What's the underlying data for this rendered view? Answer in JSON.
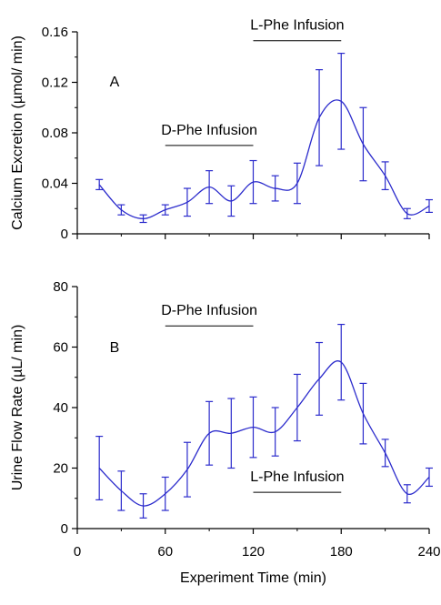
{
  "chart_data": [
    {
      "type": "line",
      "panel_label": "A",
      "ylabel": "Calcium Excretion (µmol/ min)",
      "xlabel": "",
      "xlim": [
        0,
        240
      ],
      "ylim": [
        0,
        0.16
      ],
      "xticks": [
        0,
        60,
        120,
        180,
        240
      ],
      "yticks": [
        "0",
        "0.04",
        "0.08",
        "0.12",
        "0.16"
      ],
      "series": [
        {
          "color": "#2b2bcc",
          "x": [
            15,
            30,
            45,
            60,
            75,
            90,
            105,
            120,
            135,
            150,
            165,
            180,
            195,
            210,
            225,
            240
          ],
          "y": [
            0.039,
            0.019,
            0.012,
            0.019,
            0.025,
            0.037,
            0.026,
            0.041,
            0.036,
            0.04,
            0.092,
            0.105,
            0.071,
            0.046,
            0.016,
            0.022
          ],
          "err": [
            0.004,
            0.004,
            0.003,
            0.004,
            0.011,
            0.013,
            0.012,
            0.017,
            0.01,
            0.016,
            0.038,
            0.038,
            0.029,
            0.011,
            0.004,
            0.005
          ]
        }
      ],
      "annotations": [
        {
          "text": "D-Phe Infusion",
          "x_start": 60,
          "x_end": 120,
          "y": 0.07
        },
        {
          "text": "L-Phe Infusion",
          "x_start": 120,
          "x_end": 180,
          "y": 0.153
        }
      ]
    },
    {
      "type": "line",
      "panel_label": "B",
      "ylabel": "Urine Flow Rate (µL/ min)",
      "xlabel": "Experiment Time (min)",
      "xlim": [
        0,
        240
      ],
      "ylim": [
        0,
        80
      ],
      "xticks": [
        0,
        60,
        120,
        180,
        240
      ],
      "yticks": [
        "0",
        "20",
        "40",
        "60",
        "80"
      ],
      "series": [
        {
          "color": "#2b2bcc",
          "x": [
            15,
            30,
            45,
            60,
            75,
            90,
            105,
            120,
            135,
            150,
            165,
            180,
            195,
            210,
            225,
            240
          ],
          "y": [
            20,
            12.5,
            7.5,
            11.5,
            19.5,
            31.5,
            31.5,
            33.5,
            32,
            40,
            49.5,
            55,
            38,
            25,
            11.5,
            17
          ],
          "err": [
            10.5,
            6.5,
            4,
            5.5,
            9,
            10.5,
            11.5,
            10,
            8,
            11,
            12,
            12.5,
            10,
            4.5,
            3,
            3
          ]
        }
      ],
      "annotations": [
        {
          "text": "D-Phe Infusion",
          "x_start": 60,
          "x_end": 120,
          "y": 67
        },
        {
          "text": "L-Phe Infusion",
          "x_start": 120,
          "x_end": 180,
          "y": 12
        }
      ]
    }
  ]
}
